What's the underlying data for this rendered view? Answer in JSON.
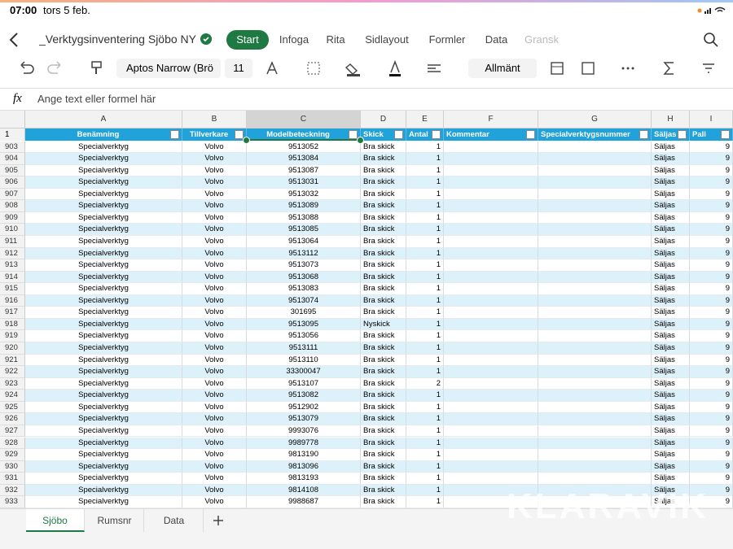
{
  "status": {
    "time": "07:00",
    "date": "tors 5 feb."
  },
  "ribbon": {
    "document_title": "_Verktygsinventering Sjöbo NY",
    "tabs": [
      "Start",
      "Infoga",
      "Rita",
      "Sidlayout",
      "Formler",
      "Data",
      "Gransk"
    ],
    "font_name": "Aptos Narrow (Brö",
    "font_size": "11",
    "number_format": "Allmänt"
  },
  "formula_bar": {
    "label": "fx",
    "placeholder": "Ange text eller formel här"
  },
  "sheet": {
    "columns": [
      "A",
      "B",
      "C",
      "D",
      "E",
      "F",
      "G",
      "H",
      "I"
    ],
    "header_row": "1",
    "headers": [
      "Benämning",
      "Tillverkare",
      "Modelbeteckning",
      "Skick",
      "Antal",
      "Kommentar",
      "Specialverktygsnummer",
      "Säljas",
      "Pall"
    ],
    "rows": [
      {
        "row": "903",
        "name": "Specialverktyg",
        "maker": "Volvo",
        "model": 9513052,
        "condition": "Bra skick",
        "qty": 1,
        "sale": "Säljas",
        "pallet": 9
      },
      {
        "row": "904",
        "name": "Specialverktyg",
        "maker": "Volvo",
        "model": 9513084,
        "condition": "Bra skick",
        "qty": 1,
        "sale": "Säljas",
        "pallet": 9
      },
      {
        "row": "905",
        "name": "Specialverktyg",
        "maker": "Volvo",
        "model": 9513087,
        "condition": "Bra skick",
        "qty": 1,
        "sale": "Säljas",
        "pallet": 9
      },
      {
        "row": "906",
        "name": "Specialverktyg",
        "maker": "Volvo",
        "model": 9513031,
        "condition": "Bra skick",
        "qty": 1,
        "sale": "Säljas",
        "pallet": 9
      },
      {
        "row": "907",
        "name": "Specialverktyg",
        "maker": "Volvo",
        "model": 9513032,
        "condition": "Bra skick",
        "qty": 1,
        "sale": "Säljas",
        "pallet": 9
      },
      {
        "row": "908",
        "name": "Specialverktyg",
        "maker": "Volvo",
        "model": 9513089,
        "condition": "Bra skick",
        "qty": 1,
        "sale": "Säljas",
        "pallet": 9
      },
      {
        "row": "909",
        "name": "Specialverktyg",
        "maker": "Volvo",
        "model": 9513088,
        "condition": "Bra skick",
        "qty": 1,
        "sale": "Säljas",
        "pallet": 9
      },
      {
        "row": "910",
        "name": "Specialverktyg",
        "maker": "Volvo",
        "model": 9513085,
        "condition": "Bra skick",
        "qty": 1,
        "sale": "Säljas",
        "pallet": 9
      },
      {
        "row": "911",
        "name": "Specialverktyg",
        "maker": "Volvo",
        "model": 9513064,
        "condition": "Bra skick",
        "qty": 1,
        "sale": "Säljas",
        "pallet": 9
      },
      {
        "row": "912",
        "name": "Specialverktyg",
        "maker": "Volvo",
        "model": 9513112,
        "condition": "Bra skick",
        "qty": 1,
        "sale": "Säljas",
        "pallet": 9
      },
      {
        "row": "913",
        "name": "Specialverktyg",
        "maker": "Volvo",
        "model": 9513073,
        "condition": "Bra skick",
        "qty": 1,
        "sale": "Säljas",
        "pallet": 9
      },
      {
        "row": "914",
        "name": "Specialverktyg",
        "maker": "Volvo",
        "model": 9513068,
        "condition": "Bra skick",
        "qty": 1,
        "sale": "Säljas",
        "pallet": 9
      },
      {
        "row": "915",
        "name": "Specialverktyg",
        "maker": "Volvo",
        "model": 9513083,
        "condition": "Bra skick",
        "qty": 1,
        "sale": "Säljas",
        "pallet": 9
      },
      {
        "row": "916",
        "name": "Specialverktyg",
        "maker": "Volvo",
        "model": 9513074,
        "condition": "Bra skick",
        "qty": 1,
        "sale": "Säljas",
        "pallet": 9
      },
      {
        "row": "917",
        "name": "Specialverktyg",
        "maker": "Volvo",
        "model": 301695,
        "condition": "Bra skick",
        "qty": 1,
        "sale": "Säljas",
        "pallet": 9
      },
      {
        "row": "918",
        "name": "Specialverktyg",
        "maker": "Volvo",
        "model": 9513095,
        "condition": "Nyskick",
        "qty": 1,
        "sale": "Säljas",
        "pallet": 9
      },
      {
        "row": "919",
        "name": "Specialverktyg",
        "maker": "Volvo",
        "model": 9513056,
        "condition": "Bra skick",
        "qty": 1,
        "sale": "Säljas",
        "pallet": 9
      },
      {
        "row": "920",
        "name": "Specialverktyg",
        "maker": "Volvo",
        "model": 9513111,
        "condition": "Bra skick",
        "qty": 1,
        "sale": "Säljas",
        "pallet": 9
      },
      {
        "row": "921",
        "name": "Specialverktyg",
        "maker": "Volvo",
        "model": 9513110,
        "condition": "Bra skick",
        "qty": 1,
        "sale": "Säljas",
        "pallet": 9
      },
      {
        "row": "922",
        "name": "Specialverktyg",
        "maker": "Volvo",
        "model": 33300047,
        "condition": "Bra skick",
        "qty": 1,
        "sale": "Säljas",
        "pallet": 9
      },
      {
        "row": "923",
        "name": "Specialverktyg",
        "maker": "Volvo",
        "model": 9513107,
        "condition": "Bra skick",
        "qty": 2,
        "sale": "Säljas",
        "pallet": 9
      },
      {
        "row": "924",
        "name": "Specialverktyg",
        "maker": "Volvo",
        "model": 9513082,
        "condition": "Bra skick",
        "qty": 1,
        "sale": "Säljas",
        "pallet": 9
      },
      {
        "row": "925",
        "name": "Specialverktyg",
        "maker": "Volvo",
        "model": 9512902,
        "condition": "Bra skick",
        "qty": 1,
        "sale": "Säljas",
        "pallet": 9
      },
      {
        "row": "926",
        "name": "Specialverktyg",
        "maker": "Volvo",
        "model": 9513079,
        "condition": "Bra skick",
        "qty": 1,
        "sale": "Säljas",
        "pallet": 9
      },
      {
        "row": "927",
        "name": "Specialverktyg",
        "maker": "Volvo",
        "model": 9993076,
        "condition": "Bra skick",
        "qty": 1,
        "sale": "Säljas",
        "pallet": 9
      },
      {
        "row": "928",
        "name": "Specialverktyg",
        "maker": "Volvo",
        "model": 9989778,
        "condition": "Bra skick",
        "qty": 1,
        "sale": "Säljas",
        "pallet": 9
      },
      {
        "row": "929",
        "name": "Specialverktyg",
        "maker": "Volvo",
        "model": 9813190,
        "condition": "Bra skick",
        "qty": 1,
        "sale": "Säljas",
        "pallet": 9
      },
      {
        "row": "930",
        "name": "Specialverktyg",
        "maker": "Volvo",
        "model": 9813096,
        "condition": "Bra skick",
        "qty": 1,
        "sale": "Säljas",
        "pallet": 9
      },
      {
        "row": "931",
        "name": "Specialverktyg",
        "maker": "Volvo",
        "model": 9813193,
        "condition": "Bra skick",
        "qty": 1,
        "sale": "Säljas",
        "pallet": 9
      },
      {
        "row": "932",
        "name": "Specialverktyg",
        "maker": "Volvo",
        "model": 9814108,
        "condition": "Bra skick",
        "qty": 1,
        "sale": "Säljas",
        "pallet": 9
      },
      {
        "row": "933",
        "name": "Specialverktyg",
        "maker": "Volvo",
        "model": 9988687,
        "condition": "Bra skick",
        "qty": 1,
        "sale": "Säljas",
        "pallet": 9
      }
    ]
  },
  "sheet_tabs": [
    "Sjöbo",
    "Rumsnr",
    "Data"
  ],
  "watermark": "KLARAVIK"
}
